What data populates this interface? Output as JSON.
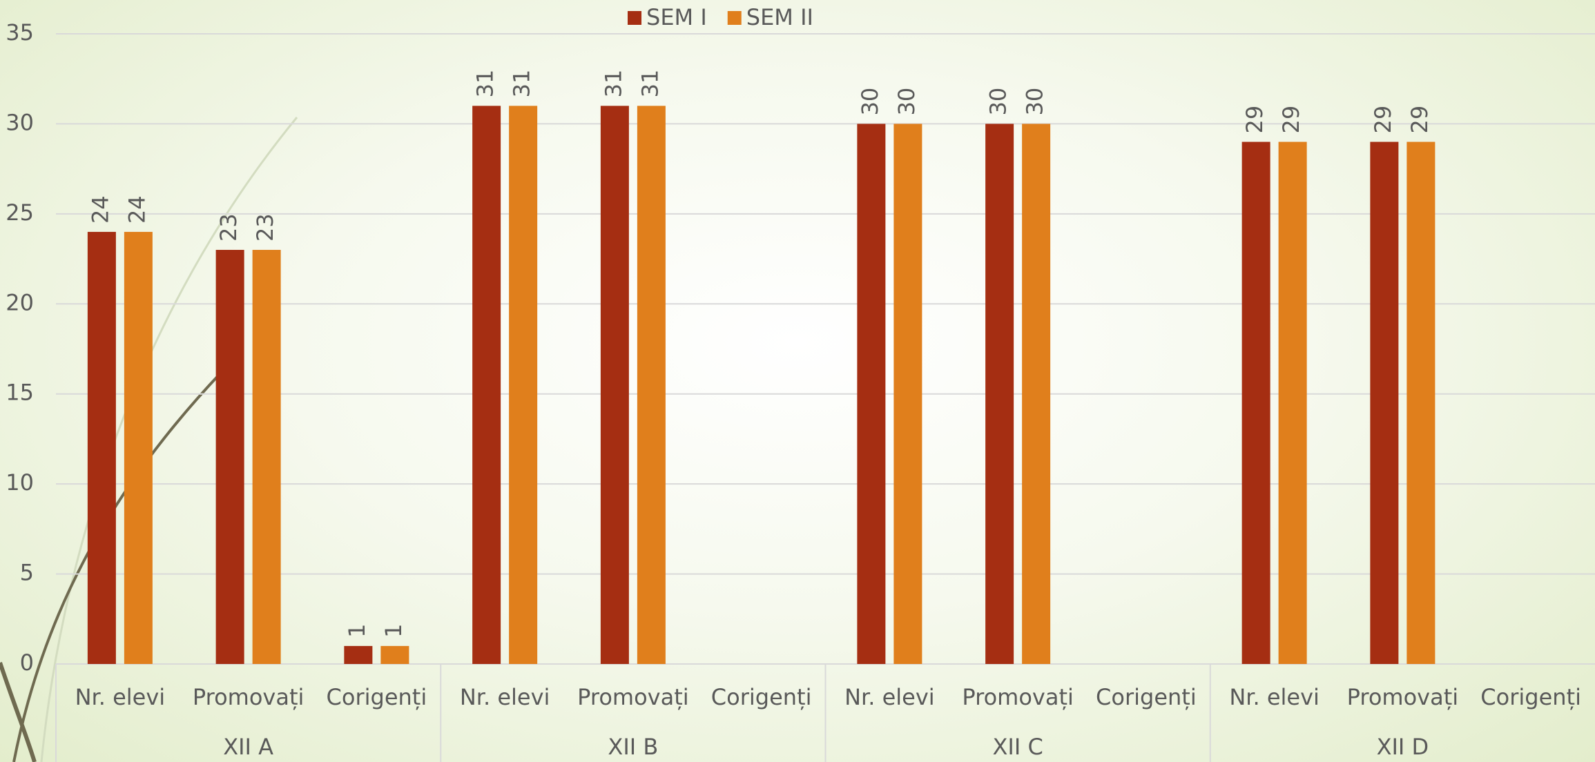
{
  "chart_data": {
    "type": "bar",
    "groups": [
      "XII A",
      "XII B",
      "XII C",
      "XII D"
    ],
    "categories": [
      "Nr. elevi",
      "Promovați",
      "Corigenți",
      "Nr. elevi",
      "Promovați",
      "Corigenți",
      "Nr. elevi",
      "Promovați",
      "Corigenți",
      "Nr. elevi",
      "Promovați",
      "Corigenți"
    ],
    "series": [
      {
        "name": "SEM I",
        "color": "#a52e12",
        "values": [
          24,
          23,
          1,
          31,
          31,
          null,
          30,
          30,
          null,
          29,
          29,
          null
        ]
      },
      {
        "name": "SEM II",
        "color": "#e07f1c",
        "values": [
          24,
          23,
          1,
          31,
          31,
          null,
          30,
          30,
          null,
          29,
          29,
          null
        ]
      }
    ],
    "ylim": [
      0,
      35
    ],
    "yticks": [
      0,
      5,
      10,
      15,
      20,
      25,
      30,
      35
    ],
    "grid": true,
    "legend": "top"
  }
}
